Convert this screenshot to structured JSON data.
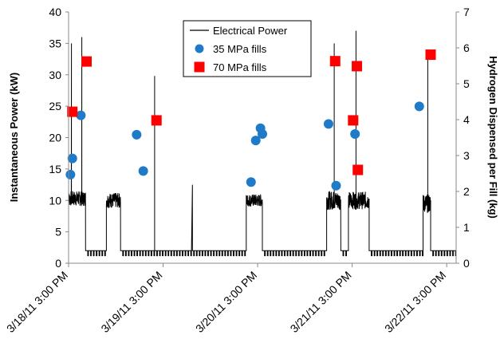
{
  "chart_data": {
    "type": "line",
    "title": "",
    "ylabel": "Instantaneous Power (kW)",
    "y2label": "Hydrogen Dispensed per Fill (kg)",
    "ylim": [
      0,
      40
    ],
    "y2lim": [
      0,
      7
    ],
    "yticks": [
      "0",
      "5",
      "10",
      "15",
      "20",
      "25",
      "30",
      "35",
      "40"
    ],
    "y2ticks": [
      "0",
      "1",
      "2",
      "3",
      "4",
      "5",
      "6",
      "7"
    ],
    "xrange_days": [
      0,
      4.1
    ],
    "xticks": [
      {
        "day": 0,
        "label": "3/18/11 3:00 PM"
      },
      {
        "day": 1,
        "label": "3/19/11 3:00 PM"
      },
      {
        "day": 2,
        "label": "3/20/11 3:00 PM"
      },
      {
        "day": 3,
        "label": "3/21/11 3:00 PM"
      },
      {
        "day": 4,
        "label": "3/22/11 3:00 PM"
      }
    ],
    "grid": false,
    "legend_position": "top-center",
    "series": [
      {
        "name": "Electrical Power",
        "axis": "left",
        "style": "line",
        "color": "#000000",
        "segments": [
          {
            "start": -0.01,
            "end": 0.18,
            "kind": "noisy",
            "base": 10.3,
            "amp": 1.2
          },
          {
            "start": 0.18,
            "end": 0.4,
            "kind": "low",
            "base": 2,
            "amp": 0
          },
          {
            "start": 0.4,
            "end": 0.55,
            "kind": "noisy",
            "base": 10,
            "amp": 1.2
          },
          {
            "start": 0.55,
            "end": 1.88,
            "kind": "low",
            "base": 2,
            "amp": 0
          },
          {
            "start": 1.88,
            "end": 2.05,
            "kind": "noisy",
            "base": 10,
            "amp": 1.0
          },
          {
            "start": 2.05,
            "end": 2.73,
            "kind": "low",
            "base": 2,
            "amp": 0
          },
          {
            "start": 2.73,
            "end": 2.88,
            "kind": "noisy",
            "base": 10,
            "amp": 1.5
          },
          {
            "start": 2.88,
            "end": 2.96,
            "kind": "low",
            "base": 2,
            "amp": 0
          },
          {
            "start": 2.96,
            "end": 3.18,
            "kind": "noisy",
            "base": 10,
            "amp": 1.4
          },
          {
            "start": 3.18,
            "end": 3.75,
            "kind": "low",
            "base": 2,
            "amp": 0
          },
          {
            "start": 3.75,
            "end": 3.83,
            "kind": "noisy",
            "base": 9.5,
            "amp": 1.5
          },
          {
            "start": 3.83,
            "end": 4.1,
            "kind": "low",
            "base": 2,
            "amp": 0
          }
        ],
        "spikes": [
          {
            "day": 0.03,
            "value": 35
          },
          {
            "day": 0.14,
            "value": 36
          },
          {
            "day": 0.91,
            "value": 29.8
          },
          {
            "day": 1.31,
            "value": 12.5
          },
          {
            "day": 2.81,
            "value": 35
          },
          {
            "day": 3.04,
            "value": 37
          },
          {
            "day": 3.8,
            "value": 33
          }
        ]
      },
      {
        "name": "35 MPa fills",
        "axis": "right",
        "style": "marker-circle",
        "color": "#1F7BC8",
        "points": [
          {
            "day": 0.02,
            "value": 2.47
          },
          {
            "day": 0.04,
            "value": 2.92
          },
          {
            "day": 0.13,
            "value": 4.12
          },
          {
            "day": 0.72,
            "value": 3.58
          },
          {
            "day": 0.79,
            "value": 2.57
          },
          {
            "day": 1.93,
            "value": 2.26
          },
          {
            "day": 1.98,
            "value": 3.42
          },
          {
            "day": 2.03,
            "value": 3.76
          },
          {
            "day": 2.05,
            "value": 3.6
          },
          {
            "day": 2.75,
            "value": 3.88
          },
          {
            "day": 2.83,
            "value": 2.16
          },
          {
            "day": 3.03,
            "value": 3.6
          },
          {
            "day": 3.71,
            "value": 4.37
          }
        ]
      },
      {
        "name": "70 MPa fills",
        "axis": "right",
        "style": "marker-square",
        "color": "#FF0000",
        "points": [
          {
            "day": 0.04,
            "value": 4.22
          },
          {
            "day": 0.19,
            "value": 5.62
          },
          {
            "day": 0.93,
            "value": 3.98
          },
          {
            "day": 2.82,
            "value": 5.63
          },
          {
            "day": 3.01,
            "value": 3.98
          },
          {
            "day": 3.05,
            "value": 5.49
          },
          {
            "day": 3.06,
            "value": 2.6
          },
          {
            "day": 3.83,
            "value": 5.81
          }
        ]
      }
    ]
  }
}
